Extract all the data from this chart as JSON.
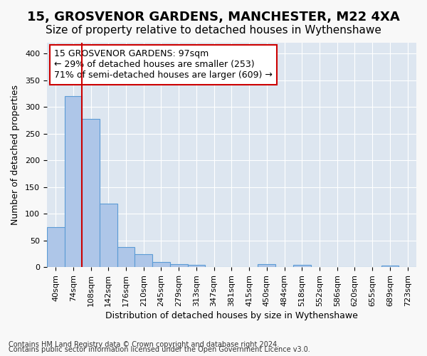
{
  "title": "15, GROSVENOR GARDENS, MANCHESTER, M22 4XA",
  "subtitle": "Size of property relative to detached houses in Wythenshawe",
  "xlabel": "Distribution of detached houses by size in Wythenshawe",
  "ylabel": "Number of detached properties",
  "footnote1": "Contains HM Land Registry data © Crown copyright and database right 2024.",
  "footnote2": "Contains public sector information licensed under the Open Government Licence v3.0.",
  "bin_labels": [
    "40sqm",
    "74sqm",
    "108sqm",
    "142sqm",
    "176sqm",
    "210sqm",
    "245sqm",
    "279sqm",
    "313sqm",
    "347sqm",
    "381sqm",
    "415sqm",
    "450sqm",
    "484sqm",
    "518sqm",
    "552sqm",
    "586sqm",
    "620sqm",
    "655sqm",
    "689sqm",
    "723sqm"
  ],
  "bar_values": [
    75,
    320,
    278,
    119,
    38,
    24,
    10,
    5,
    4,
    0,
    0,
    0,
    5,
    0,
    4,
    0,
    0,
    0,
    0,
    3,
    0
  ],
  "bar_color": "#aec6e8",
  "bar_edge_color": "#5b9bd5",
  "vline_color": "#cc0000",
  "annotation_box_text": "15 GROSVENOR GARDENS: 97sqm\n← 29% of detached houses are smaller (253)\n71% of semi-detached houses are larger (609) →",
  "ylim": [
    0,
    420
  ],
  "yticks": [
    0,
    50,
    100,
    150,
    200,
    250,
    300,
    350,
    400
  ],
  "background_color": "#dde6f0",
  "grid_color": "#ffffff",
  "fig_facecolor": "#f8f8f8",
  "title_fontsize": 13,
  "subtitle_fontsize": 11,
  "axis_label_fontsize": 9,
  "tick_fontsize": 8,
  "annotation_fontsize": 9
}
